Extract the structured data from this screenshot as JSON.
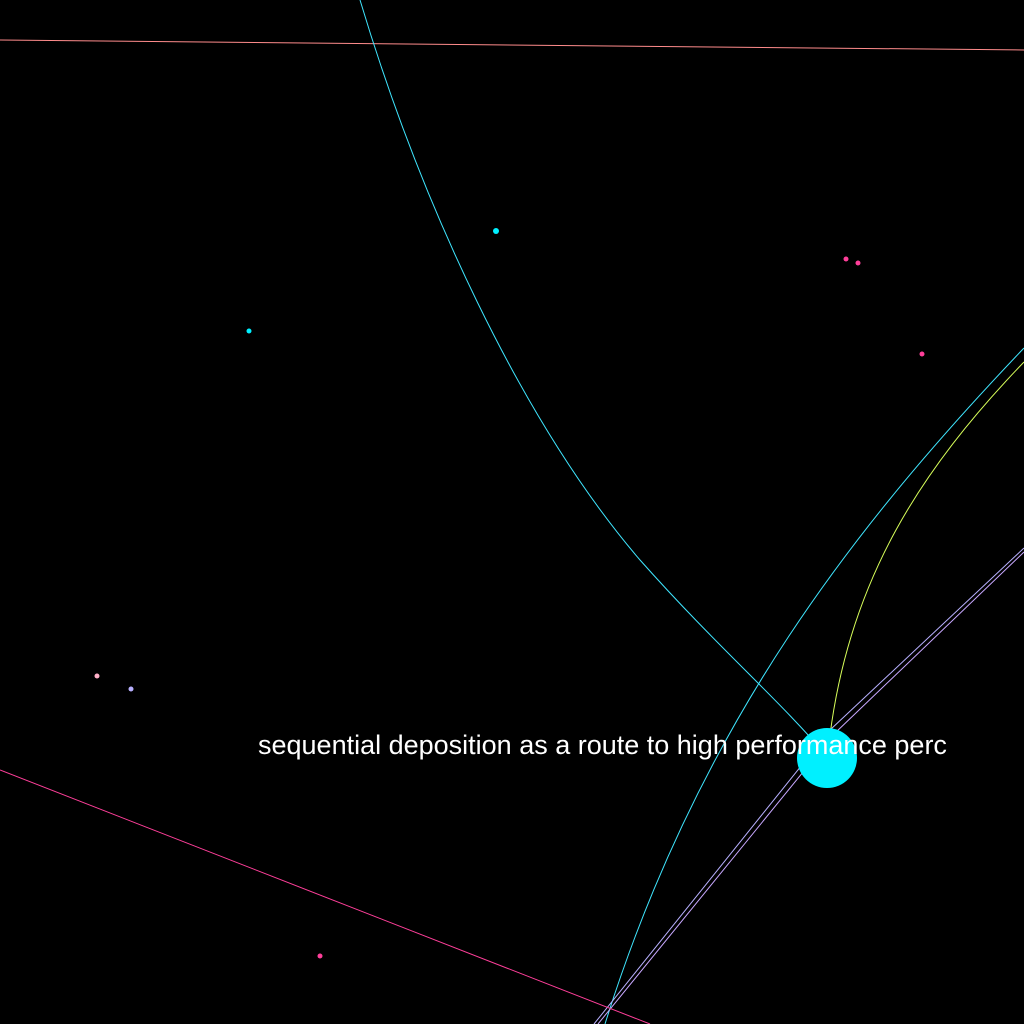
{
  "background_color": "#000000",
  "label_color": "#ffffff",
  "focus_node": {
    "label": "sequential deposition as a route to high performance perc",
    "color": "#00f0ff"
  },
  "edges": [
    {
      "name": "edge-top-horizontal",
      "color": "#ff8c8c"
    },
    {
      "name": "edge-cyan-arc-top",
      "color": "#3fe6ff"
    },
    {
      "name": "edge-cyan-arc-right",
      "color": "#3fe6ff"
    },
    {
      "name": "edge-yellow-green-arc",
      "color": "#d8ff5a"
    },
    {
      "name": "edge-lavender-line-1",
      "color": "#b8b0ff"
    },
    {
      "name": "edge-lavender-line-2",
      "color": "#c8a8ff"
    },
    {
      "name": "edge-pink-diagonal",
      "color": "#ff3f9a"
    }
  ],
  "nodes": [
    {
      "name": "node-cyan-1",
      "color": "#00f0ff"
    },
    {
      "name": "node-cyan-2",
      "color": "#00f0ff"
    },
    {
      "name": "node-pink-1",
      "color": "#ff3f9a"
    },
    {
      "name": "node-pink-2",
      "color": "#ff3f9a"
    },
    {
      "name": "node-pink-3",
      "color": "#ff3f9a"
    },
    {
      "name": "node-pink-4",
      "color": "#ff3f9a"
    },
    {
      "name": "node-light-pink",
      "color": "#ffb0c8"
    },
    {
      "name": "node-lavender",
      "color": "#b8b0ff"
    }
  ]
}
